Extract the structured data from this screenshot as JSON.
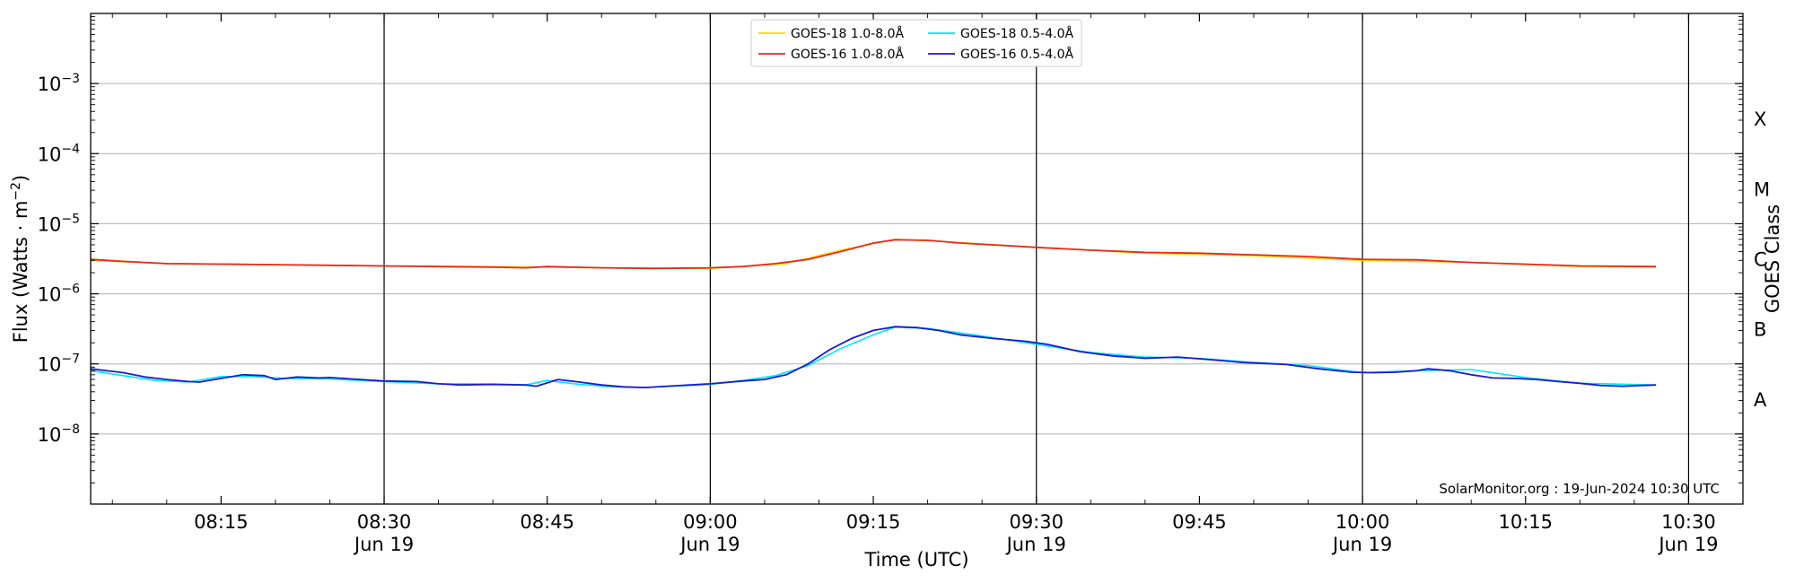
{
  "chart_data": {
    "type": "line",
    "xlabel": "Time (UTC)",
    "ylabel": "Flux (Watts · m⁻²)",
    "ylabel_parts": {
      "main": "Flux (Watts · m",
      "sup": "−2",
      "close": ")"
    },
    "y2label": "GOES Class",
    "y_scale": "log",
    "ylim": [
      1e-09,
      0.01
    ],
    "xlim": [
      "2024-06-19 08:03",
      "2024-06-19 10:35"
    ],
    "grid": "horizontal-major",
    "legend_position": "top-center",
    "credit": "SolarMonitor.org : 19-Jun-2024 10:30 UTC",
    "y_ticks": [
      {
        "value": 1e-08,
        "base": "10",
        "exp": "−8"
      },
      {
        "value": 1e-07,
        "base": "10",
        "exp": "−7"
      },
      {
        "value": 1e-06,
        "base": "10",
        "exp": "−6"
      },
      {
        "value": 1e-05,
        "base": "10",
        "exp": "−5"
      },
      {
        "value": 0.0001,
        "base": "10",
        "exp": "−4"
      },
      {
        "value": 0.001,
        "base": "10",
        "exp": "−3"
      }
    ],
    "x_ticks": [
      {
        "t": "08:15",
        "label": "08:15",
        "sub": ""
      },
      {
        "t": "08:30",
        "label": "08:30",
        "sub": "Jun 19"
      },
      {
        "t": "08:45",
        "label": "08:45",
        "sub": ""
      },
      {
        "t": "09:00",
        "label": "09:00",
        "sub": "Jun 19"
      },
      {
        "t": "09:15",
        "label": "09:15",
        "sub": ""
      },
      {
        "t": "09:30",
        "label": "09:30",
        "sub": "Jun 19"
      },
      {
        "t": "09:45",
        "label": "09:45",
        "sub": ""
      },
      {
        "t": "10:00",
        "label": "10:00",
        "sub": "Jun 19"
      },
      {
        "t": "10:15",
        "label": "10:15",
        "sub": ""
      },
      {
        "t": "10:30",
        "label": "10:30",
        "sub": "Jun 19"
      }
    ],
    "vlines": [
      "08:30",
      "09:00",
      "09:30",
      "10:00",
      "10:30"
    ],
    "goes_classes": [
      {
        "label": "A",
        "value": 3.16e-08
      },
      {
        "label": "B",
        "value": 3.16e-07
      },
      {
        "label": "C",
        "value": 3.16e-06
      },
      {
        "label": "M",
        "value": 3.16e-05
      },
      {
        "label": "X",
        "value": 0.000316
      }
    ],
    "series": [
      {
        "name": "GOES-18 1.0-8.0Å",
        "color": "#FFD700",
        "x": [
          "08:03",
          "08:10",
          "08:20",
          "08:30",
          "08:40",
          "08:50",
          "09:00",
          "09:07",
          "09:12",
          "09:17",
          "09:22",
          "09:30",
          "09:40",
          "09:50",
          "10:00",
          "10:10",
          "10:20",
          "10:27"
        ],
        "y": [
          3e-06,
          2.7e-06,
          2.6e-06,
          2.5e-06,
          2.45e-06,
          2.35e-06,
          2.3e-06,
          2.7e-06,
          4.2e-06,
          6e-06,
          5.5e-06,
          4.6e-06,
          3.8e-06,
          3.5e-06,
          3e-06,
          2.8e-06,
          2.45e-06,
          2.4e-06
        ]
      },
      {
        "name": "GOES-16 1.0-8.0Å",
        "color": "#E8291C",
        "x": [
          "08:03",
          "08:06",
          "08:10",
          "08:15",
          "08:20",
          "08:25",
          "08:30",
          "08:35",
          "08:40",
          "08:43",
          "08:45",
          "08:50",
          "08:55",
          "09:00",
          "09:03",
          "09:06",
          "09:09",
          "09:12",
          "09:15",
          "09:17",
          "09:20",
          "09:23",
          "09:26",
          "09:30",
          "09:35",
          "09:40",
          "09:45",
          "09:50",
          "09:55",
          "10:00",
          "10:05",
          "10:10",
          "10:15",
          "10:20",
          "10:27"
        ],
        "y": [
          3.1e-06,
          2.9e-06,
          2.7e-06,
          2.65e-06,
          2.6e-06,
          2.55e-06,
          2.5e-06,
          2.45e-06,
          2.4e-06,
          2.35e-06,
          2.45e-06,
          2.35e-06,
          2.3e-06,
          2.35e-06,
          2.45e-06,
          2.7e-06,
          3.1e-06,
          4e-06,
          5.3e-06,
          5.9e-06,
          5.8e-06,
          5.3e-06,
          5e-06,
          4.6e-06,
          4.2e-06,
          3.9e-06,
          3.8e-06,
          3.6e-06,
          3.4e-06,
          3.1e-06,
          3.05e-06,
          2.8e-06,
          2.65e-06,
          2.5e-06,
          2.45e-06
        ]
      },
      {
        "name": "GOES-18 0.5-4.0Å",
        "color": "#00E5FF",
        "x": [
          "08:03",
          "08:06",
          "08:09",
          "08:12",
          "08:15",
          "08:18",
          "08:21",
          "08:25",
          "08:30",
          "08:35",
          "08:40",
          "08:43",
          "08:45",
          "08:48",
          "08:51",
          "08:54",
          "09:00",
          "09:03",
          "09:06",
          "09:09",
          "09:12",
          "09:15",
          "09:17",
          "09:20",
          "09:25",
          "09:30",
          "09:35",
          "09:40",
          "09:45",
          "09:50",
          "09:55",
          "10:00",
          "10:05",
          "10:10",
          "10:15",
          "10:20",
          "10:27"
        ],
        "y": [
          8e-08,
          6.8e-08,
          5.8e-08,
          5.5e-08,
          6.6e-08,
          6.6e-08,
          6.2e-08,
          6.1e-08,
          5.6e-08,
          5.2e-08,
          5.2e-08,
          5e-08,
          5.8e-08,
          5.1e-08,
          4.7e-08,
          4.6e-08,
          5.1e-08,
          5.8e-08,
          6.8e-08,
          9.5e-08,
          1.65e-07,
          2.6e-07,
          3.35e-07,
          3.2e-07,
          2.5e-07,
          1.9e-07,
          1.45e-07,
          1.25e-07,
          1.2e-07,
          1.05e-07,
          9.5e-08,
          7.5e-08,
          8e-08,
          8.3e-08,
          6.4e-08,
          5.3e-08,
          5e-08
        ]
      },
      {
        "name": "GOES-16 0.5-4.0Å",
        "color": "#1A1AD0",
        "x": [
          "08:03",
          "08:06",
          "08:08",
          "08:10",
          "08:12",
          "08:13",
          "08:15",
          "08:17",
          "08:19",
          "08:20",
          "08:22",
          "08:24",
          "08:25",
          "08:27",
          "08:30",
          "08:33",
          "08:35",
          "08:37",
          "08:40",
          "08:43",
          "08:44",
          "08:46",
          "08:48",
          "08:50",
          "08:52",
          "08:54",
          "08:56",
          "09:00",
          "09:03",
          "09:05",
          "09:07",
          "09:09",
          "09:11",
          "09:13",
          "09:15",
          "09:17",
          "09:19",
          "09:21",
          "09:23",
          "09:26",
          "09:29",
          "09:31",
          "09:34",
          "09:37",
          "09:40",
          "09:43",
          "09:46",
          "09:49",
          "09:53",
          "09:56",
          "09:59",
          "10:01",
          "10:03",
          "10:05",
          "10:06",
          "10:08",
          "10:10",
          "10:12",
          "10:14",
          "10:16",
          "10:18",
          "10:20",
          "10:22",
          "10:24",
          "10:27"
        ],
        "y": [
          8.5e-08,
          7.5e-08,
          6.5e-08,
          6e-08,
          5.6e-08,
          5.5e-08,
          6.2e-08,
          7e-08,
          6.8e-08,
          6e-08,
          6.5e-08,
          6.3e-08,
          6.4e-08,
          6.1e-08,
          5.7e-08,
          5.6e-08,
          5.2e-08,
          5e-08,
          5.1e-08,
          5e-08,
          4.8e-08,
          6e-08,
          5.5e-08,
          5e-08,
          4.7e-08,
          4.6e-08,
          4.8e-08,
          5.2e-08,
          5.7e-08,
          6e-08,
          7e-08,
          1e-07,
          1.6e-07,
          2.3e-07,
          3e-07,
          3.4e-07,
          3.3e-07,
          3e-07,
          2.6e-07,
          2.3e-07,
          2.1e-07,
          1.9e-07,
          1.5e-07,
          1.3e-07,
          1.2e-07,
          1.25e-07,
          1.15e-07,
          1.05e-07,
          9.8e-08,
          8.5e-08,
          7.6e-08,
          7.5e-08,
          7.6e-08,
          8e-08,
          8.5e-08,
          8e-08,
          7e-08,
          6.3e-08,
          6.2e-08,
          6e-08,
          5.6e-08,
          5.3e-08,
          4.9e-08,
          4.8e-08,
          5e-08
        ]
      }
    ]
  }
}
